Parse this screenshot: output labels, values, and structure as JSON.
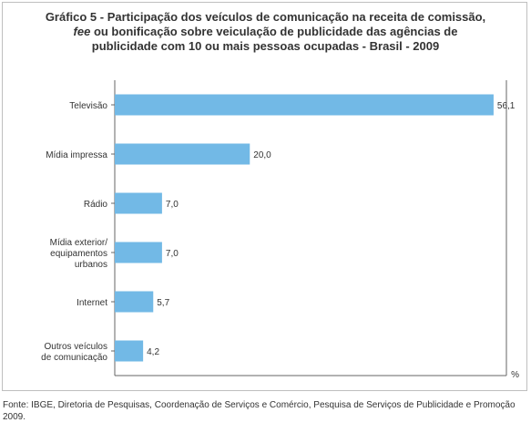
{
  "title": {
    "line1": "Gráfico 5 - Participação dos veículos de comunicação na receita de comissão,",
    "line2_italic": "fee",
    "line2_rest": " ou bonificação sobre veiculação de publicidade das agências de",
    "line3": "publicidade com 10 ou mais pessoas ocupadas - Brasil - 2009"
  },
  "source": "Fonte: IBGE, Diretoria de Pesquisas, Coordenação de Serviços e Comércio, Pesquisa de Serviços de Publicidade e Promoção 2009.",
  "chart_data": {
    "type": "bar",
    "orientation": "horizontal",
    "categories": [
      [
        "Televisão"
      ],
      [
        "Mídia impressa"
      ],
      [
        "Rádio"
      ],
      [
        "Mídia exterior/",
        "equipamentos",
        "urbanos"
      ],
      [
        "Internet"
      ],
      [
        "Outros veículos",
        "de comunicação"
      ]
    ],
    "values": [
      56.1,
      20.0,
      7.0,
      7.0,
      5.7,
      4.2
    ],
    "value_labels": [
      "56,1",
      "20,0",
      "7,0",
      "7,0",
      "5,7",
      "4,2"
    ],
    "unit_label": "%",
    "xlim": [
      0,
      58
    ],
    "grid": false,
    "legend": "none",
    "bar_color": "#72b9e6",
    "axis_color": "#666666"
  }
}
